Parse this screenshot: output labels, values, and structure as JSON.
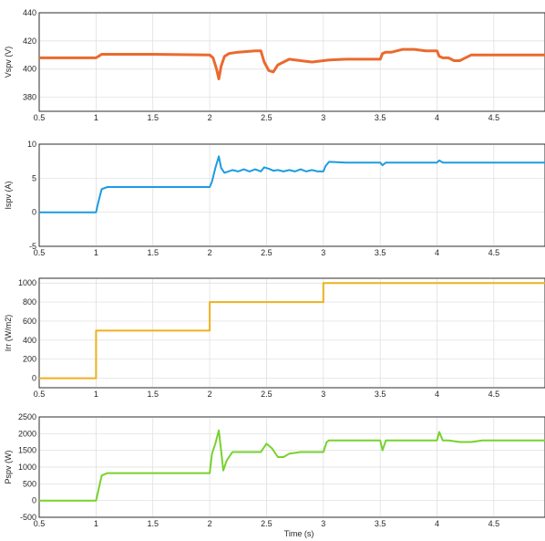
{
  "figure": {
    "xlabel": "Time (s)"
  },
  "chart_data": [
    {
      "type": "line",
      "ylabel": "Vspv (V)",
      "xlim": [
        0.5,
        4.95
      ],
      "ylim": [
        370,
        440
      ],
      "xticks": [
        0.5,
        1,
        1.5,
        2,
        2.5,
        3,
        3.5,
        4,
        4.5
      ],
      "xtick_labels": [
        "0.5",
        "1",
        "1.5",
        "2",
        "2.5",
        "3",
        "3.5",
        "4",
        "4.5"
      ],
      "yticks": [
        380,
        400,
        420,
        440
      ],
      "ytick_labels": [
        "380",
        "400",
        "420",
        "440"
      ],
      "grid": true,
      "color": "#ea6a2e",
      "line_width": 3,
      "series": [
        {
          "x": [
            0.5,
            1.0,
            1.05,
            1.5,
            2.0,
            2.03,
            2.06,
            2.08,
            2.1,
            2.13,
            2.17,
            2.25,
            2.4,
            2.45,
            2.48,
            2.52,
            2.56,
            2.6,
            2.7,
            2.8,
            2.9,
            3.0,
            3.05,
            3.2,
            3.5,
            3.52,
            3.55,
            3.6,
            3.7,
            3.8,
            3.9,
            4.0,
            4.02,
            4.05,
            4.1,
            4.15,
            4.2,
            4.3,
            4.4,
            4.5,
            4.95
          ],
          "y": [
            408,
            408,
            410.5,
            410.5,
            410,
            408,
            400,
            393,
            402,
            409,
            411,
            412,
            413,
            413,
            405,
            399,
            398,
            403,
            407,
            406,
            405,
            406,
            406.5,
            407,
            407,
            411,
            412,
            412,
            414,
            414,
            413,
            413,
            409,
            408,
            408,
            406,
            406,
            410,
            410,
            410,
            410
          ]
        }
      ]
    },
    {
      "type": "line",
      "ylabel": "Ispv (A)",
      "xlim": [
        0.5,
        4.95
      ],
      "ylim": [
        -5,
        10
      ],
      "xticks": [
        0.5,
        1,
        1.5,
        2,
        2.5,
        3,
        3.5,
        4,
        4.5
      ],
      "xtick_labels": [
        "0.5",
        "1",
        "1.5",
        "2",
        "2.5",
        "3",
        "3.5",
        "4",
        "4.5"
      ],
      "yticks": [
        -5,
        0,
        5,
        10
      ],
      "ytick_labels": [
        "-5",
        "0",
        "5",
        "10"
      ],
      "grid": true,
      "color": "#1d9ce0",
      "line_width": 2,
      "series": [
        {
          "x": [
            0.5,
            1.0,
            1.02,
            1.05,
            1.1,
            1.5,
            2.0,
            2.02,
            2.05,
            2.08,
            2.1,
            2.13,
            2.2,
            2.25,
            2.3,
            2.35,
            2.4,
            2.45,
            2.48,
            2.52,
            2.56,
            2.6,
            2.65,
            2.7,
            2.75,
            2.8,
            2.85,
            2.9,
            2.95,
            3.0,
            3.02,
            3.05,
            3.2,
            3.4,
            3.5,
            3.52,
            3.55,
            3.7,
            3.9,
            4.0,
            4.02,
            4.05,
            4.2,
            4.4,
            4.6,
            4.8,
            4.95
          ],
          "y": [
            0,
            0,
            1.5,
            3.4,
            3.7,
            3.7,
            3.7,
            4.5,
            6.5,
            8.2,
            6.5,
            5.8,
            6.2,
            6.0,
            6.3,
            6.0,
            6.3,
            6.0,
            6.6,
            6.4,
            6.1,
            6.2,
            6.0,
            6.2,
            6.0,
            6.3,
            6.0,
            6.2,
            6.0,
            6.0,
            6.8,
            7.4,
            7.3,
            7.3,
            7.3,
            6.9,
            7.3,
            7.3,
            7.3,
            7.3,
            7.6,
            7.3,
            7.3,
            7.3,
            7.3,
            7.3,
            7.3
          ]
        }
      ]
    },
    {
      "type": "line",
      "ylabel": "Irr (W/m2)",
      "xlim": [
        0.5,
        4.95
      ],
      "ylim": [
        -100,
        1050
      ],
      "xticks": [
        0.5,
        1,
        1.5,
        2,
        2.5,
        3,
        3.5,
        4,
        4.5
      ],
      "xtick_labels": [
        "0.5",
        "1",
        "1.5",
        "2",
        "2.5",
        "3",
        "3.5",
        "4",
        "4.5"
      ],
      "yticks": [
        0,
        200,
        400,
        600,
        800,
        1000
      ],
      "ytick_labels": [
        "0",
        "200",
        "400",
        "600",
        "800",
        "1000"
      ],
      "grid": true,
      "color": "#edb120",
      "line_width": 2,
      "series": [
        {
          "x": [
            0.5,
            1.0,
            1.0,
            2.0,
            2.0,
            3.0,
            3.0,
            4.95
          ],
          "y": [
            0,
            0,
            500,
            500,
            800,
            800,
            1000,
            1000
          ]
        }
      ]
    },
    {
      "type": "line",
      "ylabel": "Pspv (W)",
      "xlim": [
        0.5,
        4.95
      ],
      "ylim": [
        -500,
        2500
      ],
      "xticks": [
        0.5,
        1,
        1.5,
        2,
        2.5,
        3,
        3.5,
        4,
        4.5
      ],
      "xtick_labels": [
        "0.5",
        "1",
        "1.5",
        "2",
        "2.5",
        "3",
        "3.5",
        "4",
        "4.5"
      ],
      "yticks": [
        -500,
        0,
        500,
        1000,
        1500,
        2000,
        2500
      ],
      "ytick_labels": [
        "-500",
        "0",
        "500",
        "1000",
        "1500",
        "2000",
        "2500"
      ],
      "grid": true,
      "color": "#77d22d",
      "line_width": 2,
      "series": [
        {
          "x": [
            0.5,
            1.0,
            1.02,
            1.05,
            1.1,
            1.5,
            2.0,
            2.02,
            2.05,
            2.08,
            2.1,
            2.12,
            2.15,
            2.2,
            2.3,
            2.45,
            2.5,
            2.55,
            2.6,
            2.65,
            2.7,
            2.8,
            2.9,
            3.0,
            3.03,
            3.05,
            3.2,
            3.5,
            3.52,
            3.55,
            3.6,
            3.7,
            3.9,
            4.0,
            4.02,
            4.05,
            4.1,
            4.2,
            4.3,
            4.4,
            4.5,
            4.95
          ],
          "y": [
            0,
            0,
            300,
            750,
            820,
            820,
            820,
            1400,
            1700,
            2100,
            1500,
            900,
            1200,
            1450,
            1450,
            1450,
            1700,
            1550,
            1300,
            1300,
            1400,
            1450,
            1450,
            1450,
            1750,
            1800,
            1800,
            1800,
            1500,
            1800,
            1800,
            1800,
            1800,
            1800,
            2050,
            1800,
            1800,
            1750,
            1750,
            1800,
            1800,
            1800
          ]
        }
      ]
    }
  ]
}
